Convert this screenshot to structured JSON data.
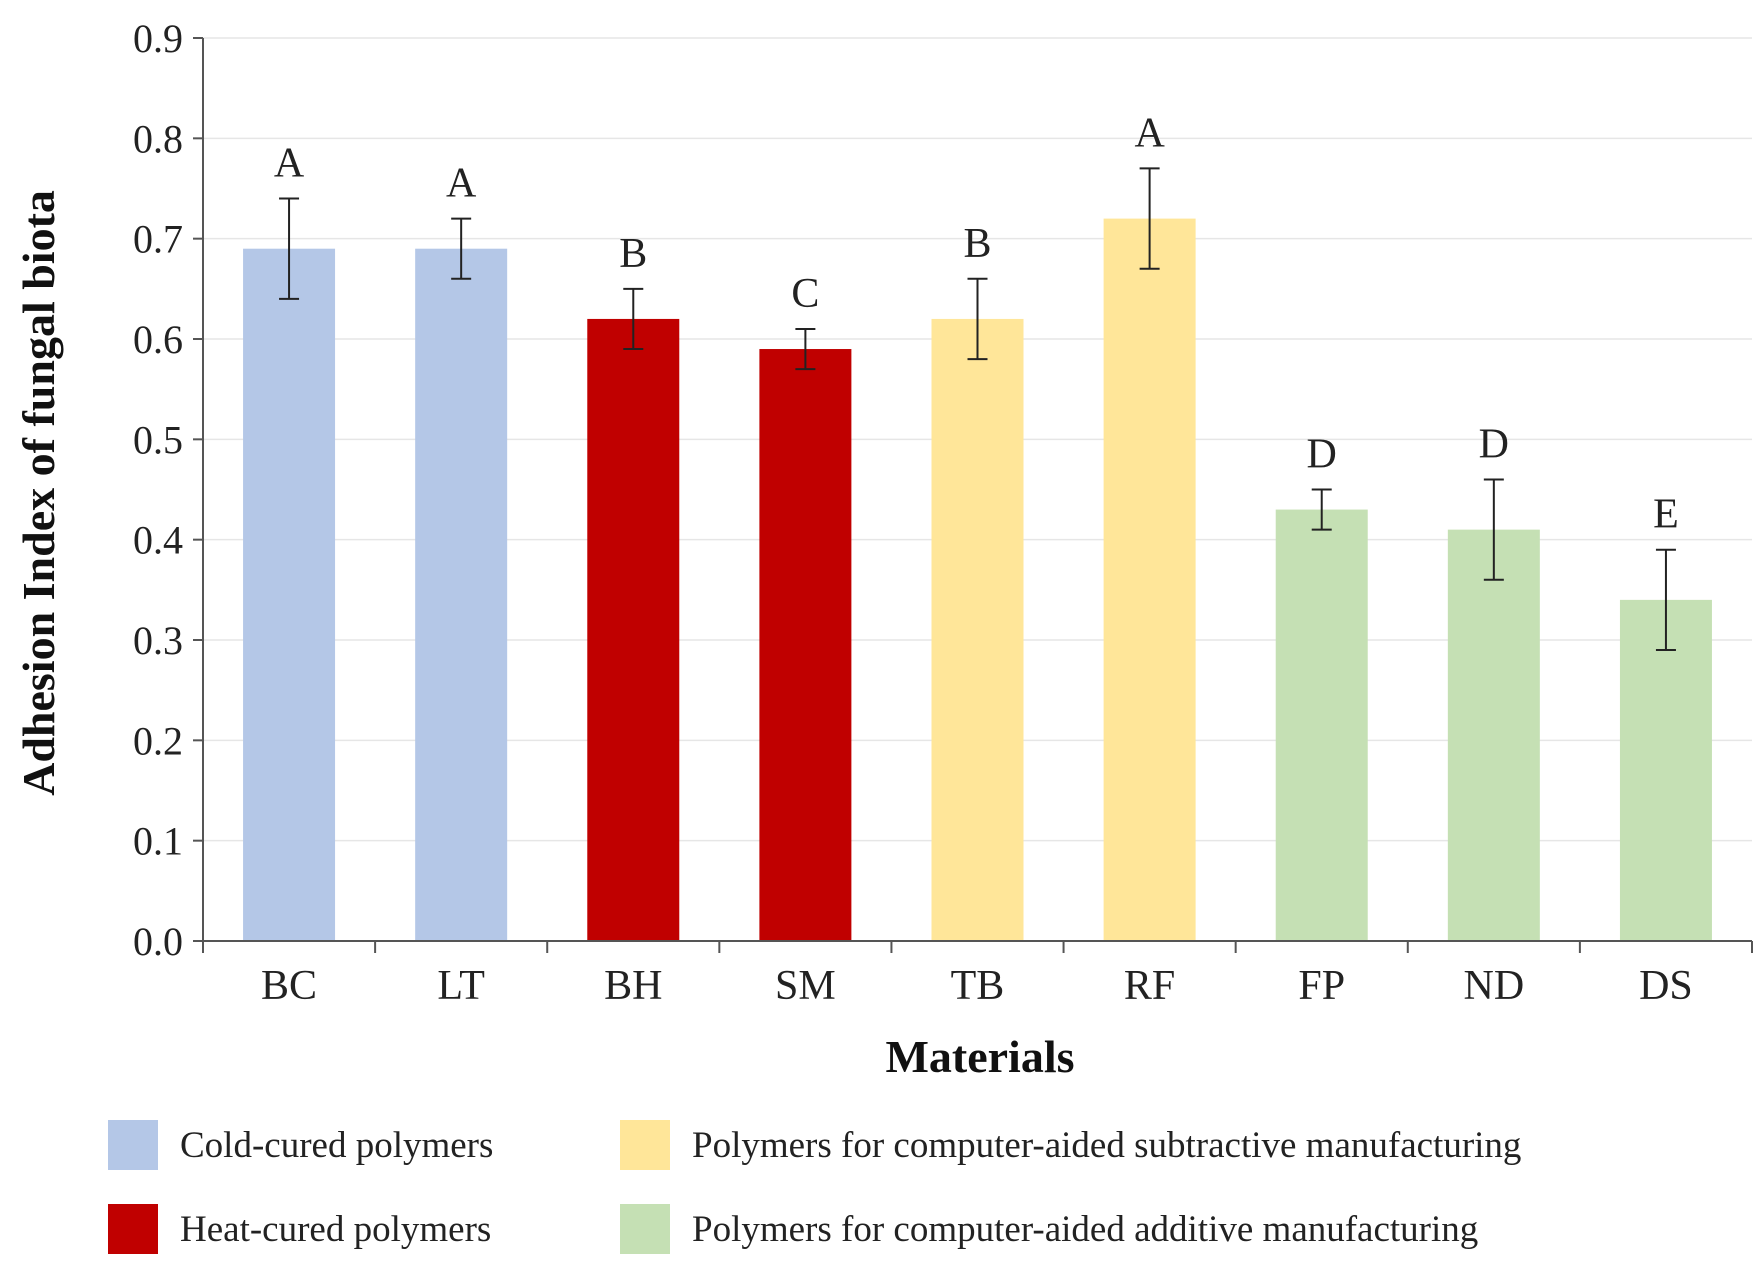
{
  "chart_data": {
    "type": "bar",
    "title": "",
    "xlabel": "Materials",
    "ylabel": "Adhesion Index of fungal biota",
    "ylim": [
      0,
      0.9
    ],
    "yticks": [
      "0.0",
      "0.1",
      "0.2",
      "0.3",
      "0.4",
      "0.5",
      "0.6",
      "0.7",
      "0.8",
      "0.9"
    ],
    "grid": true,
    "categories": [
      "BC",
      "LT",
      "BH",
      "SM",
      "TB",
      "RF",
      "FP",
      "ND",
      "DS"
    ],
    "values": [
      0.69,
      0.69,
      0.62,
      0.59,
      0.62,
      0.72,
      0.43,
      0.41,
      0.34
    ],
    "errors": [
      0.05,
      0.03,
      0.03,
      0.02,
      0.04,
      0.05,
      0.02,
      0.05,
      0.05
    ],
    "significance": [
      "A",
      "A",
      "B",
      "C",
      "B",
      "A",
      "D",
      "D",
      "E"
    ],
    "groups": [
      0,
      0,
      1,
      1,
      2,
      2,
      3,
      3,
      3
    ],
    "legend": [
      {
        "label": "Cold-cured polymers",
        "color": "#b4c7e7"
      },
      {
        "label": "Heat-cured polymers",
        "color": "#c00000"
      },
      {
        "label": "Polymers for computer-aided subtractive manufacturing",
        "color": "#ffe699"
      },
      {
        "label": "Polymers for computer-aided additive manufacturing",
        "color": "#c5e0b4"
      }
    ],
    "legend_position": "bottom"
  }
}
